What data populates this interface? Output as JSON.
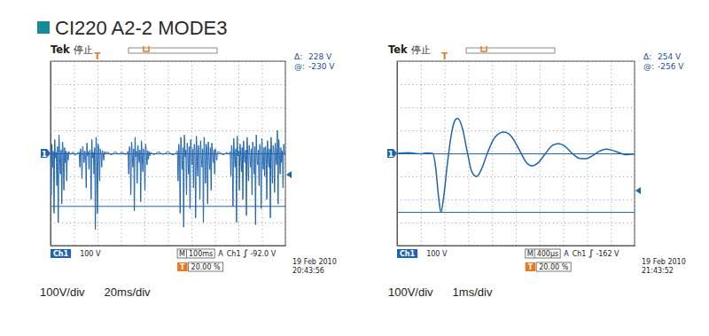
{
  "header": {
    "title": "CI220 A2-2 MODE3"
  },
  "chart_data": [
    {
      "type": "line",
      "color": "#1f64ad",
      "brand": "Tek",
      "state": "停止",
      "x": [
        -200,
        -197,
        -194,
        -191,
        -188,
        -185,
        -182,
        -179,
        -176,
        -173,
        -170,
        -167,
        -164,
        -161,
        -158,
        -155,
        -152,
        -149,
        -146,
        -143,
        -140,
        -137,
        -134,
        -131,
        -128,
        -125,
        -122,
        -115,
        -105,
        -95,
        -85,
        -78,
        -75,
        -72,
        -69,
        -66,
        -63,
        -60,
        -57,
        -54,
        -51,
        -48,
        -45,
        -42,
        -39,
        -36,
        -33,
        -30,
        -27,
        -24,
        -21,
        -18,
        -15,
        -12,
        -9,
        -6,
        -3,
        0,
        3,
        6,
        9,
        12,
        15,
        18,
        21,
        24,
        27,
        30,
        33,
        36,
        45,
        60,
        75,
        90,
        105,
        120,
        130,
        133,
        136,
        139,
        142,
        145,
        148,
        151,
        154,
        157,
        160,
        163,
        166,
        169,
        172,
        175,
        178,
        181,
        184,
        187,
        190,
        193,
        196,
        199,
        202,
        205,
        208,
        211,
        214,
        217,
        220,
        223,
        226,
        240,
        260,
        280,
        300,
        320,
        335,
        340,
        343,
        346,
        349,
        352,
        355,
        358,
        361,
        364,
        367,
        370,
        373,
        376,
        379,
        382,
        385,
        388,
        391,
        394,
        397,
        400,
        403,
        406,
        409,
        412,
        415,
        418,
        421,
        424,
        427,
        430,
        433,
        436,
        439,
        442,
        445,
        448,
        451,
        454,
        457,
        460,
        463,
        466,
        469,
        472,
        475,
        478,
        481,
        484,
        487,
        490,
        493,
        496,
        499,
        502,
        505,
        508,
        511,
        520,
        535,
        550,
        560,
        565,
        568,
        571,
        574,
        577,
        580,
        583,
        586,
        589,
        592,
        595,
        598,
        601,
        604,
        607,
        610,
        613,
        616,
        619,
        622,
        625,
        628,
        631,
        634,
        637,
        640,
        643,
        646,
        649,
        652,
        655,
        658,
        661,
        664,
        667,
        670,
        673,
        676,
        679,
        682,
        685,
        688,
        691,
        694,
        697,
        700,
        703,
        706,
        709,
        712,
        715,
        718,
        721,
        724,
        727,
        730,
        733,
        736,
        739,
        742,
        745,
        748,
        751,
        754,
        757,
        760,
        763,
        766,
        769,
        772,
        775,
        778,
        781,
        784,
        787,
        790,
        793,
        796,
        800
      ],
      "values": [
        20,
        -180,
        40,
        -60,
        10,
        -260,
        60,
        -20,
        5,
        -140,
        30,
        -300,
        80,
        -10,
        -90,
        15,
        -220,
        50,
        -5,
        -160,
        25,
        -40,
        10,
        -120,
        5,
        -30,
        8,
        -4,
        6,
        -7,
        3,
        5,
        -60,
        20,
        -8,
        -110,
        30,
        4,
        -40,
        10,
        -6,
        -150,
        45,
        -12,
        8,
        -70,
        15,
        -3,
        -200,
        60,
        -20,
        6,
        -90,
        25,
        -330,
        70,
        -15,
        -260,
        40,
        10,
        -120,
        20,
        -5,
        -60,
        12,
        -4,
        -30,
        8,
        -2,
        5,
        4,
        -6,
        7,
        -3,
        5,
        -5,
        8,
        -90,
        30,
        -10,
        -180,
        50,
        -5,
        -60,
        20,
        -250,
        70,
        -15,
        10,
        -130,
        35,
        -8,
        -40,
        15,
        -210,
        55,
        -10,
        -80,
        20,
        -5,
        -160,
        40,
        6,
        -50,
        12,
        -25,
        8,
        -10,
        4,
        -5,
        6,
        -4,
        7,
        -6,
        3,
        10,
        -120,
        40,
        -20,
        -260,
        70,
        -10,
        -70,
        25,
        -320,
        80,
        -15,
        15,
        -180,
        45,
        -5,
        -90,
        30,
        -240,
        60,
        -20,
        -50,
        20,
        -150,
        40,
        5,
        -280,
        75,
        -10,
        -100,
        35,
        -8,
        -200,
        55,
        -15,
        -60,
        20,
        -300,
        70,
        -5,
        -130,
        40,
        10,
        -220,
        50,
        -20,
        -70,
        25,
        -160,
        45,
        -8,
        -40,
        15,
        -90,
        20,
        -5,
        -30,
        6,
        5,
        -6,
        4,
        -3,
        8,
        -100,
        35,
        -15,
        -230,
        65,
        -5,
        -60,
        20,
        -300,
        75,
        -10,
        10,
        -160,
        40,
        -8,
        -80,
        25,
        -200,
        55,
        -15,
        -40,
        15,
        -270,
        70,
        -5,
        -120,
        35,
        -10,
        -60,
        20,
        -180,
        50,
        -20,
        -90,
        30,
        -310,
        80,
        -10,
        -50,
        15,
        -140,
        40,
        -5,
        -240,
        65,
        -15,
        -70,
        25,
        -100,
        30,
        -8,
        -200,
        55,
        -20,
        -60,
        20,
        -280,
        70,
        -10,
        -130,
        35,
        5,
        -170,
        45,
        -15,
        -50,
        100,
        -220,
        60,
        -10,
        -90,
        25,
        -40,
        10,
        -150,
        40,
        -5,
        4
      ],
      "xlim": [
        -200,
        800
      ],
      "xticks": [
        -200,
        -100,
        0,
        100,
        200,
        300,
        400,
        500,
        600,
        700,
        800
      ],
      "ylim": [
        -400,
        400
      ],
      "yticks": [
        -400,
        -300,
        -200,
        -100,
        0,
        100,
        200,
        300,
        400
      ],
      "grid": true,
      "tick_labels": false,
      "channel": "Ch1",
      "scale_label": "100 V",
      "ground_label": "1",
      "timebase_prefix": "M",
      "timebase": "100ms",
      "trigger": {
        "symbol": "T",
        "mode": "A",
        "source": "Ch1",
        "level": -92,
        "level_label": "-92.0 V",
        "position": 20,
        "position_label": "20.00 %"
      },
      "cursors": [
        -2,
        -230
      ],
      "readout": {
        "delta_prefix": "Δ:",
        "delta_label": "228 V",
        "at_prefix": "@:",
        "at_label": "-230 V"
      },
      "date": "19 Feb 2010",
      "time": "20:43:56",
      "caption": [
        "100V/div",
        "20ms/div"
      ]
    },
    {
      "type": "line",
      "color": "#1f64ad",
      "brand": "Tek",
      "state": "停止",
      "x": [
        -0.8,
        -0.6,
        -0.4,
        -0.3,
        -0.2,
        -0.15,
        -0.1,
        -0.06,
        -0.02,
        0.05,
        0.12,
        0.18,
        0.22,
        0.3,
        0.38,
        0.46,
        0.54,
        0.62,
        0.72,
        0.85,
        1.0,
        1.12,
        1.25,
        1.38,
        1.48,
        1.58,
        1.7,
        1.82,
        1.92,
        2.02,
        2.15,
        2.28,
        2.38,
        2.48,
        2.6,
        2.72,
        2.82,
        2.95,
        3.05,
        3.2
      ],
      "values": [
        0,
        3,
        -2,
        2,
        0,
        -60,
        -190,
        -256,
        -200,
        -40,
        90,
        145,
        152,
        110,
        10,
        -80,
        -100,
        -70,
        0,
        70,
        92,
        75,
        20,
        -40,
        -54,
        -40,
        0,
        35,
        42,
        32,
        0,
        -22,
        -23,
        -12,
        8,
        18,
        14,
        2,
        -6,
        -3
      ],
      "xlim": [
        -0.8,
        3.2
      ],
      "xticks": [
        -0.8,
        -0.4,
        0,
        0.4,
        0.8,
        1.2,
        1.6,
        2,
        2.4,
        2.8,
        3.2
      ],
      "ylim": [
        -400,
        400
      ],
      "yticks": [
        -400,
        -300,
        -200,
        -100,
        0,
        100,
        200,
        300,
        400
      ],
      "grid": true,
      "tick_labels": false,
      "channel": "Ch1",
      "scale_label": "100 V",
      "ground_label": "1",
      "timebase_prefix": "M",
      "timebase": "400µs",
      "trigger": {
        "symbol": "T",
        "mode": "A",
        "source": "Ch1",
        "level": -162,
        "level_label": "-162 V",
        "position": 20,
        "position_label": "20.00 %"
      },
      "cursors": [
        -2,
        -256
      ],
      "readout": {
        "delta_prefix": "Δ:",
        "delta_label": "254 V",
        "at_prefix": "@:",
        "at_label": "-256 V"
      },
      "date": "19 Feb 2010",
      "time": "21:43:52",
      "caption": [
        "100V/div",
        "1ms/div"
      ]
    }
  ]
}
